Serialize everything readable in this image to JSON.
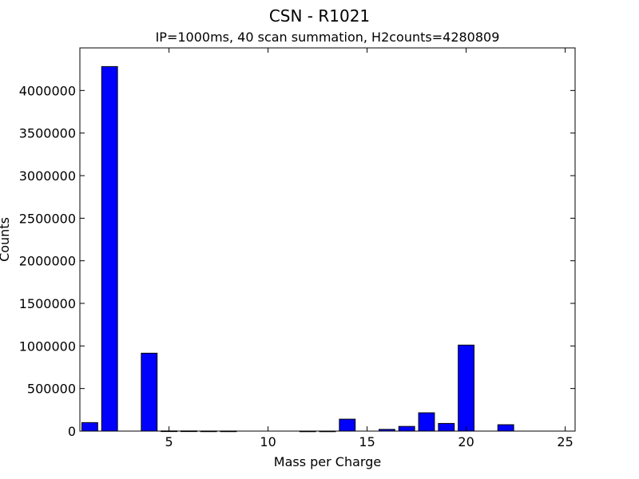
{
  "chart_data": {
    "type": "bar",
    "title": "CSN - R1021",
    "subtitle": "IP=1000ms, 40 scan summation, H2counts=4280809",
    "xlabel": "Mass per Charge",
    "ylabel": "Counts",
    "xlim": [
      0.5,
      25.5
    ],
    "ylim": [
      0,
      4500000
    ],
    "xticks": [
      5,
      10,
      15,
      20,
      25
    ],
    "yticks": [
      0,
      500000,
      1000000,
      1500000,
      2000000,
      2500000,
      3000000,
      3500000,
      4000000
    ],
    "bar_width": 0.8,
    "bar_color": "#0000ff",
    "edge_color": "#000000",
    "grid": false,
    "x": [
      1,
      2,
      3,
      4,
      5,
      6,
      7,
      8,
      9,
      10,
      11,
      12,
      13,
      14,
      15,
      16,
      17,
      18,
      19,
      20,
      21,
      22,
      23,
      24,
      25
    ],
    "values": [
      100000,
      4280809,
      0,
      915000,
      2000,
      2000,
      1000,
      1000,
      0,
      0,
      0,
      500,
      500,
      140000,
      0,
      20000,
      55000,
      215000,
      90000,
      1010000,
      0,
      75000,
      0,
      0,
      0
    ]
  }
}
